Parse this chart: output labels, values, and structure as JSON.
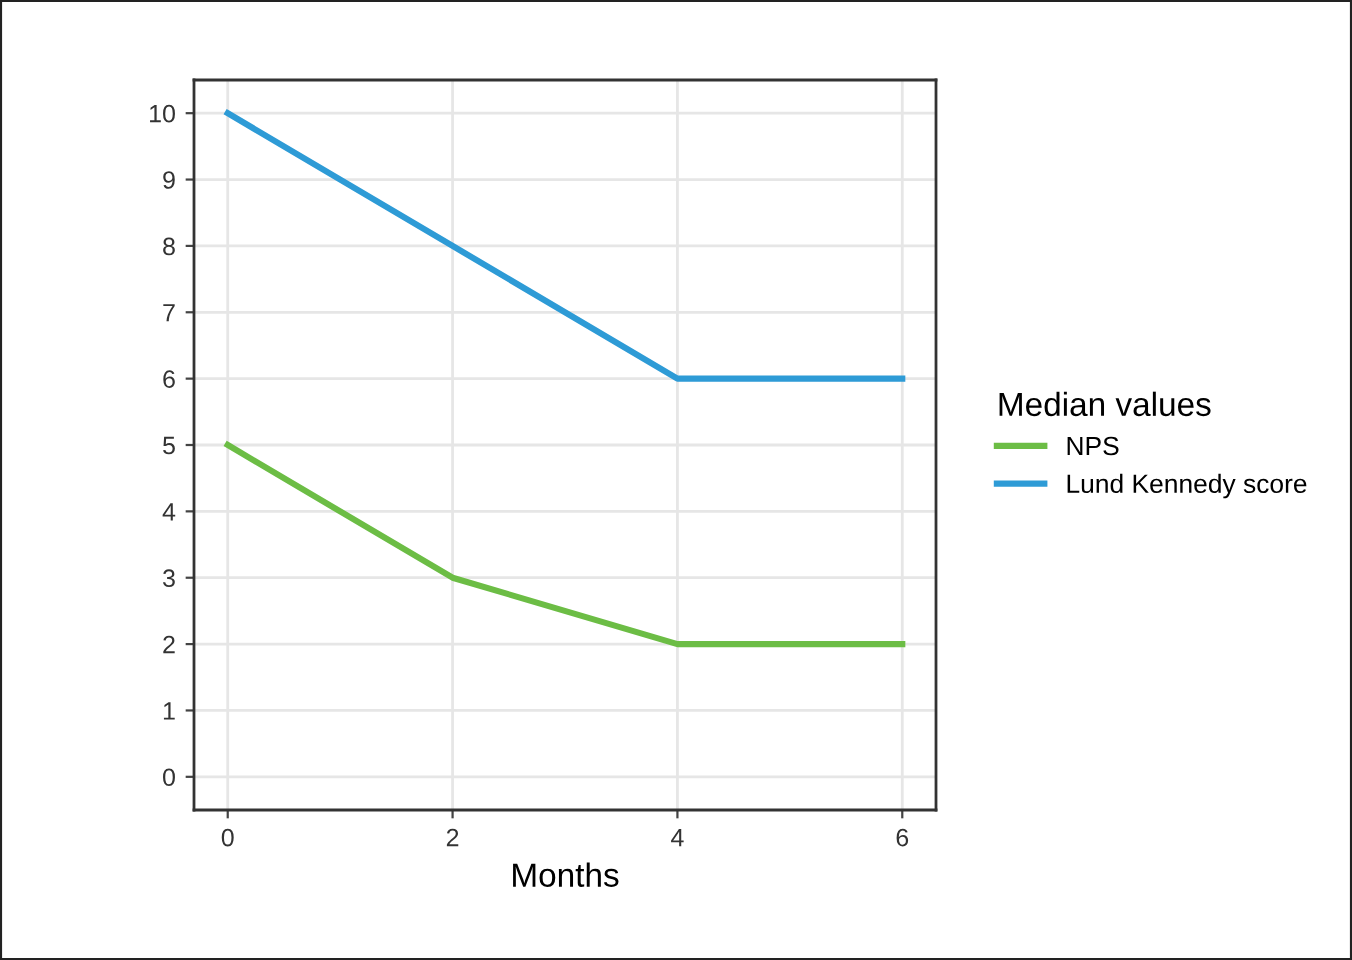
{
  "chart_data": {
    "type": "line",
    "xlabel": "Months",
    "legend_title": "Median values",
    "x": [
      0,
      2,
      4,
      6
    ],
    "series": [
      {
        "name": "NPS",
        "color": "#6cbd45",
        "values": [
          5,
          3,
          2,
          2
        ]
      },
      {
        "name": "Lund Kennedy score",
        "color": "#2e9bd6",
        "values": [
          10,
          8,
          6,
          6
        ]
      }
    ],
    "xlim": [
      -0.3,
      6.3
    ],
    "ylim": [
      -0.5,
      10.5
    ],
    "xticks": [
      0,
      2,
      4,
      6
    ],
    "yticks": [
      0,
      1,
      2,
      3,
      4,
      5,
      6,
      7,
      8,
      9,
      10
    ],
    "grid": true,
    "legend": "right",
    "marker": "none",
    "line_style": "solid"
  }
}
